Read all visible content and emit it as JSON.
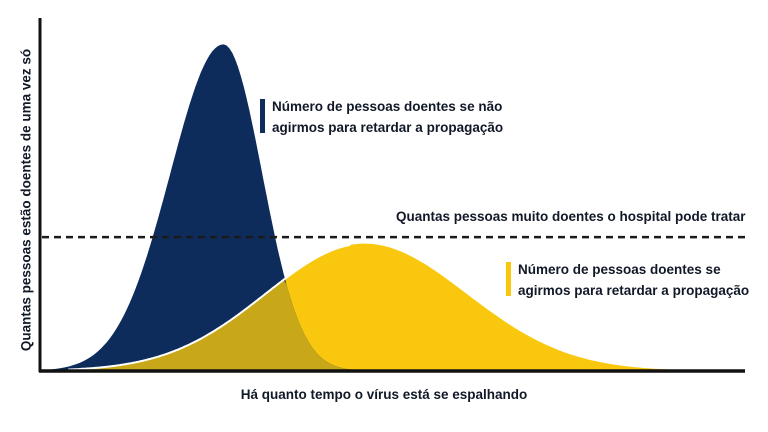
{
  "chart_data": {
    "type": "area",
    "xlabel": "Há quanto tempo o vírus está se espalhando",
    "ylabel": "Quantas pessoas estão doentes de uma vez só",
    "threshold_label": "Quantas pessoas muito doentes o hospital pode tratar",
    "threshold_value": 0.41,
    "series": [
      {
        "name": "Número de pessoas doentes se não agirmos para retardar a propagação",
        "color": "#0d2c5c",
        "peak_x": 0.26,
        "peak_value": 1.0
      },
      {
        "name": "Número de pessoas doentes se agirmos para retardar a propagação",
        "color": "#f9c80e",
        "peak_x": 0.46,
        "peak_value": 0.39
      }
    ],
    "overlap_color": "#c8a819",
    "xlim": [
      0,
      1
    ],
    "ylim": [
      0,
      1.05
    ],
    "grid": false
  }
}
